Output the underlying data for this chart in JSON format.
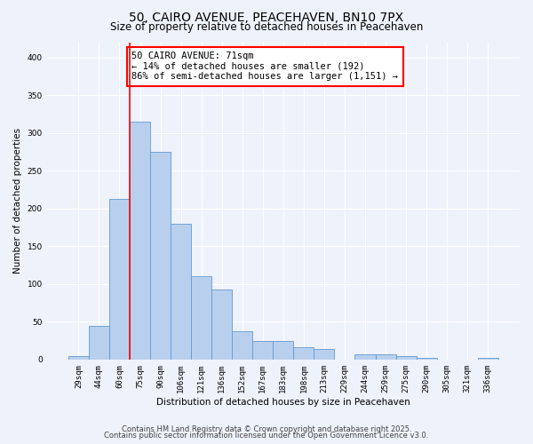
{
  "title": "50, CAIRO AVENUE, PEACEHAVEN, BN10 7PX",
  "subtitle": "Size of property relative to detached houses in Peacehaven",
  "xlabel": "Distribution of detached houses by size in Peacehaven",
  "ylabel": "Number of detached properties",
  "categories": [
    "29sqm",
    "44sqm",
    "60sqm",
    "75sqm",
    "90sqm",
    "106sqm",
    "121sqm",
    "136sqm",
    "152sqm",
    "167sqm",
    "183sqm",
    "198sqm",
    "213sqm",
    "229sqm",
    "244sqm",
    "259sqm",
    "275sqm",
    "290sqm",
    "305sqm",
    "321sqm",
    "336sqm"
  ],
  "bar_values": [
    5,
    44,
    213,
    315,
    275,
    180,
    110,
    93,
    38,
    25,
    25,
    16,
    14,
    0,
    7,
    7,
    4,
    2,
    0,
    0,
    2
  ],
  "bar_color": "#b8d0ee",
  "bar_edge_color": "#6699cc",
  "vline_color": "red",
  "vline_position": 2.5,
  "annotation_title": "50 CAIRO AVENUE: 71sqm",
  "annotation_line1": "← 14% of detached houses are smaller (192)",
  "annotation_line2": "86% of semi-detached houses are larger (1,151) →",
  "annotation_box_color": "white",
  "annotation_box_edge": "red",
  "ylim": [
    0,
    420
  ],
  "yticks": [
    0,
    50,
    100,
    150,
    200,
    250,
    300,
    350,
    400
  ],
  "footnote1": "Contains HM Land Registry data © Crown copyright and database right 2025.",
  "footnote2": "Contains public sector information licensed under the Open Government Licence v3.0.",
  "bg_color": "#eef2fb",
  "grid_color": "#ffffff",
  "title_fontsize": 10,
  "subtitle_fontsize": 8.5,
  "axis_label_fontsize": 7.5,
  "tick_fontsize": 6.5,
  "annotation_fontsize": 7.5,
  "footnote_fontsize": 6
}
